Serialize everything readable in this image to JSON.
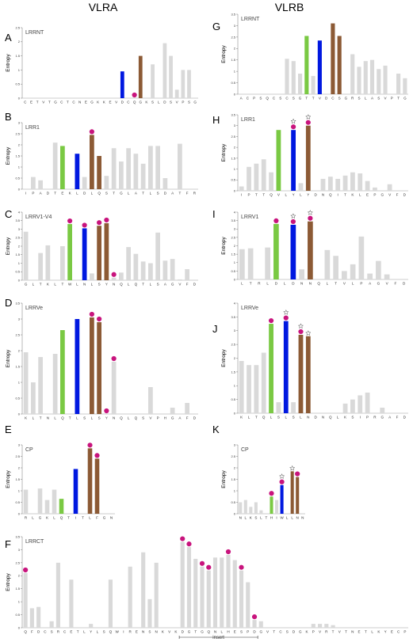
{
  "columns": [
    {
      "key": "left",
      "title": "VLRA"
    },
    {
      "key": "right",
      "title": "VLRB"
    }
  ],
  "colors": {
    "gray": "#d9d9d9",
    "green": "#7ac943",
    "blue": "#0018e0",
    "brown": "#8c5a35",
    "dot": "#c8147d"
  },
  "chart_data": [
    {
      "id": "A",
      "column": "left",
      "type": "bar",
      "title": "LRRNT",
      "ylabel": "Entropy",
      "ylim": [
        0,
        2.5
      ],
      "yticks": [
        0,
        0.5,
        1,
        1.5,
        2,
        2.5
      ],
      "categories": [
        "C",
        "E",
        "T",
        "V",
        "T",
        "G",
        "C",
        "T",
        "C",
        "N",
        "E",
        "G",
        "K",
        "K",
        "E",
        "V",
        "D",
        "C",
        "Q",
        "G",
        "K",
        "S",
        "L",
        "D",
        "S",
        "V",
        "P",
        "S",
        "G"
      ],
      "values": [
        0,
        0,
        0,
        0,
        0,
        0,
        0,
        0,
        0,
        0,
        0,
        0,
        0,
        0,
        0,
        0,
        0.95,
        0,
        0,
        1.5,
        0,
        1.2,
        0,
        1.95,
        1.5,
        0.3,
        1.0,
        1.0,
        0
      ],
      "colors": [
        "gray",
        "gray",
        "gray",
        "gray",
        "gray",
        "gray",
        "gray",
        "gray",
        "gray",
        "gray",
        "gray",
        "gray",
        "gray",
        "gray",
        "gray",
        "gray",
        "blue",
        "gray",
        "gray",
        "brown",
        "gray",
        "gray",
        "gray",
        "gray",
        "gray",
        "gray",
        "gray",
        "gray",
        "gray"
      ],
      "dots": [
        18
      ],
      "stars": []
    },
    {
      "id": "B",
      "column": "left",
      "type": "bar",
      "title": "LRR1",
      "ylabel": "Entropy",
      "ylim": [
        0,
        3
      ],
      "yticks": [
        0,
        0.5,
        1,
        1.5,
        2,
        2.5,
        3
      ],
      "categories": [
        "I",
        "P",
        "A",
        "D",
        "T",
        "E",
        "K",
        "L",
        "D",
        "L",
        "Q",
        "S",
        "T",
        "G",
        "L",
        "A",
        "T",
        "L",
        "S",
        "D",
        "A",
        "T",
        "F",
        "R"
      ],
      "values": [
        0,
        0.55,
        0.4,
        0,
        2.1,
        1.95,
        0,
        1.6,
        0.55,
        2.45,
        1.5,
        0.6,
        1.85,
        1.25,
        1.85,
        1.6,
        1.15,
        1.95,
        1.95,
        0.5,
        0,
        2.05,
        0,
        0
      ],
      "colors": [
        "gray",
        "gray",
        "gray",
        "gray",
        "gray",
        "green",
        "gray",
        "blue",
        "gray",
        "brown",
        "brown",
        "gray",
        "gray",
        "gray",
        "gray",
        "gray",
        "gray",
        "gray",
        "gray",
        "gray",
        "gray",
        "gray",
        "gray",
        "gray"
      ],
      "dots": [
        9
      ],
      "stars": []
    },
    {
      "id": "C",
      "column": "left",
      "type": "bar",
      "title": "LRRV1-V4",
      "ylabel": "Entropy",
      "ylim": [
        0,
        4
      ],
      "yticks": [
        0,
        0.5,
        1,
        1.5,
        2,
        2.5,
        3,
        3.5,
        4
      ],
      "categories": [
        "G",
        "L",
        "T",
        "K",
        "L",
        "T",
        "W",
        "L",
        "N",
        "L",
        "S",
        "Y",
        "N",
        "Q",
        "L",
        "Q",
        "T",
        "L",
        "S",
        "A",
        "G",
        "V",
        "F",
        "D"
      ],
      "values": [
        2.85,
        0,
        1.6,
        2.05,
        0,
        2.0,
        3.3,
        0,
        3.05,
        0.4,
        3.2,
        3.35,
        0.15,
        0.45,
        1.95,
        1.55,
        1.1,
        1.0,
        2.8,
        1.15,
        1.25,
        0.05,
        0.65,
        0
      ],
      "colors": [
        "gray",
        "gray",
        "gray",
        "gray",
        "gray",
        "gray",
        "green",
        "gray",
        "blue",
        "gray",
        "brown",
        "brown",
        "gray",
        "gray",
        "gray",
        "gray",
        "gray",
        "gray",
        "gray",
        "gray",
        "gray",
        "gray",
        "gray",
        "gray"
      ],
      "dots": [
        6,
        8,
        10,
        11,
        12
      ],
      "stars": []
    },
    {
      "id": "D",
      "column": "left",
      "type": "bar",
      "title": "LRRVe",
      "ylabel": "Entropy",
      "ylim": [
        0,
        3.5
      ],
      "yticks": [
        0,
        0.5,
        1,
        1.5,
        2,
        2.5,
        3,
        3.5
      ],
      "categories": [
        "K",
        "L",
        "T",
        "N",
        "L",
        "Q",
        "T",
        "L",
        "S",
        "L",
        "S",
        "Y",
        "N",
        "Q",
        "L",
        "Q",
        "S",
        "V",
        "P",
        "H",
        "G",
        "A",
        "F",
        "D"
      ],
      "values": [
        1.95,
        1.0,
        1.8,
        0,
        1.9,
        2.65,
        0,
        3.0,
        0,
        3.05,
        2.9,
        0,
        1.65,
        0,
        0,
        0,
        0,
        0.85,
        0,
        0,
        0.2,
        0,
        0.35,
        0
      ],
      "colors": [
        "gray",
        "gray",
        "gray",
        "gray",
        "gray",
        "green",
        "gray",
        "blue",
        "gray",
        "brown",
        "brown",
        "gray",
        "gray",
        "gray",
        "gray",
        "gray",
        "gray",
        "gray",
        "gray",
        "gray",
        "gray",
        "gray",
        "gray",
        "gray"
      ],
      "dots": [
        9,
        10,
        11,
        12
      ],
      "stars": []
    },
    {
      "id": "E",
      "column": "left",
      "type": "bar",
      "title": "CP",
      "ylabel": "Entropy",
      "ylim": [
        0,
        3
      ],
      "yticks": [
        0,
        0.5,
        1,
        1.5,
        2,
        2.5,
        3
      ],
      "categories": [
        "R",
        "L",
        "G",
        "K",
        "L",
        "Q",
        "T",
        "I",
        "T",
        "L",
        "F",
        "G",
        "N"
      ],
      "values": [
        1.05,
        0,
        1.1,
        0.6,
        1.05,
        0.65,
        0,
        1.95,
        0,
        2.85,
        2.4,
        0,
        0
      ],
      "colors": [
        "gray",
        "gray",
        "gray",
        "gray",
        "gray",
        "green",
        "gray",
        "blue",
        "gray",
        "brown",
        "brown",
        "gray",
        "gray"
      ],
      "dots": [
        9,
        10
      ],
      "stars": []
    },
    {
      "id": "F",
      "column": "left",
      "type": "bar",
      "title": "LRRCT",
      "ylabel": "Entropy",
      "ylim": [
        0,
        3.5
      ],
      "yticks": [
        0,
        0.5,
        1,
        1.5,
        2,
        2.5,
        3,
        3.5
      ],
      "categories": [
        "Q",
        "F",
        "D",
        "C",
        "S",
        "R",
        "C",
        "E",
        "T",
        "L",
        "Y",
        "L",
        "S",
        "Q",
        "W",
        "I",
        "R",
        "E",
        "N",
        "S",
        "N",
        "K",
        "V",
        "K",
        "D",
        "G",
        "T",
        "G",
        "Q",
        "N",
        "L",
        "H",
        "E",
        "S",
        "P",
        "D",
        "G",
        "V",
        "T",
        "C",
        "S",
        "D",
        "G",
        "K",
        "P",
        "V",
        "R",
        "T",
        "V",
        "T",
        "N",
        "E",
        "T",
        "L",
        "K",
        "Y",
        "E",
        "C",
        "P"
      ],
      "values": [
        2.1,
        0.75,
        0.8,
        0,
        0.25,
        2.5,
        0,
        1.85,
        0,
        0,
        0.15,
        0,
        0,
        1.85,
        0,
        0,
        2.35,
        0,
        2.9,
        1.1,
        2.5,
        0,
        0,
        0,
        3.3,
        3.1,
        2.65,
        2.35,
        2.2,
        2.7,
        2.7,
        2.8,
        2.6,
        2.2,
        1.75,
        0.3,
        0.25,
        0,
        0,
        0,
        0,
        0,
        0,
        0,
        0.15,
        0.15,
        0.15,
        0.1,
        0,
        0,
        0,
        0,
        0,
        0,
        0,
        0,
        0,
        0,
        0
      ],
      "colors": [
        "gray",
        "gray",
        "gray",
        "gray",
        "gray",
        "gray",
        "gray",
        "gray",
        "gray",
        "gray",
        "gray",
        "gray",
        "gray",
        "gray",
        "gray",
        "gray",
        "gray",
        "gray",
        "gray",
        "gray",
        "gray",
        "gray",
        "gray",
        "gray",
        "gray",
        "gray",
        "gray",
        "gray",
        "gray",
        "gray",
        "gray",
        "gray",
        "gray",
        "gray",
        "gray",
        "gray",
        "gray",
        "gray",
        "gray",
        "gray",
        "gray",
        "gray",
        "gray",
        "gray",
        "gray",
        "gray",
        "gray",
        "gray",
        "gray",
        "gray",
        "gray",
        "gray",
        "gray",
        "gray",
        "gray",
        "gray",
        "gray",
        "gray",
        "gray"
      ],
      "dots": [
        0,
        24,
        25,
        27,
        28,
        31,
        33,
        35
      ],
      "stars": [],
      "annotation": {
        "label": "insert",
        "from": 24,
        "to": 36
      }
    },
    {
      "id": "G",
      "column": "right",
      "type": "bar",
      "title": "LRRNT",
      "ylabel": "Entropy",
      "ylim": [
        0,
        3.5
      ],
      "yticks": [
        0,
        0.5,
        1,
        1.5,
        2,
        2.5,
        3,
        3.5
      ],
      "categories": [
        "A",
        "C",
        "P",
        "S",
        "Q",
        "C",
        "S",
        "C",
        "S",
        "G",
        "T",
        "T",
        "V",
        "D",
        "C",
        "S",
        "G",
        "R",
        "S",
        "L",
        "A",
        "S",
        "V",
        "P",
        "T",
        "G"
      ],
      "values": [
        0,
        0,
        0,
        0,
        0,
        0,
        0,
        1.55,
        1.45,
        0.9,
        2.55,
        0.8,
        2.35,
        0,
        3.1,
        2.55,
        0,
        1.75,
        1.2,
        1.45,
        1.5,
        1.1,
        1.25,
        0,
        0.9,
        0.7
      ],
      "colors": [
        "gray",
        "gray",
        "gray",
        "gray",
        "gray",
        "gray",
        "gray",
        "gray",
        "gray",
        "gray",
        "green",
        "gray",
        "blue",
        "gray",
        "brown",
        "brown",
        "gray",
        "gray",
        "gray",
        "gray",
        "gray",
        "gray",
        "gray",
        "gray",
        "gray",
        "gray"
      ],
      "dots": [],
      "stars": []
    },
    {
      "id": "H",
      "column": "right",
      "type": "bar",
      "title": "LRR1",
      "ylabel": "Entropy",
      "ylim": [
        0,
        3.5
      ],
      "yticks": [
        0,
        0.5,
        1,
        1.5,
        2,
        2.5,
        3,
        3.5
      ],
      "categories": [
        "I",
        "P",
        "T",
        "T",
        "Q",
        "V",
        "L",
        "Y",
        "L",
        "Y",
        "D",
        "N",
        "Q",
        "I",
        "T",
        "K",
        "L",
        "E",
        "P",
        "G",
        "V",
        "F",
        "D"
      ],
      "values": [
        0.2,
        1.1,
        1.25,
        1.45,
        0.85,
        2.8,
        0,
        2.8,
        0.35,
        3.0,
        0,
        0.55,
        0.65,
        0.55,
        0.7,
        0.85,
        0.8,
        0.45,
        0.15,
        0,
        0.3,
        0,
        0
      ],
      "colors": [
        "gray",
        "gray",
        "gray",
        "gray",
        "gray",
        "green",
        "gray",
        "blue",
        "gray",
        "brown",
        "gray",
        "gray",
        "gray",
        "gray",
        "gray",
        "gray",
        "gray",
        "gray",
        "gray",
        "gray",
        "gray",
        "gray",
        "gray"
      ],
      "dots": [
        7,
        9
      ],
      "stars": [
        7,
        9
      ]
    },
    {
      "id": "I",
      "column": "right",
      "type": "bar",
      "title": "LRRV1",
      "ylabel": "Entropy",
      "ylim": [
        0,
        4
      ],
      "yticks": [
        0,
        0.5,
        1,
        1.5,
        2,
        2.5,
        3,
        3.5,
        4
      ],
      "categories": [
        "L",
        "T",
        "R",
        "L",
        "D",
        "L",
        "D",
        "N",
        "N",
        "Q",
        "L",
        "T",
        "V",
        "L",
        "P",
        "A",
        "G",
        "V",
        "F",
        "D"
      ],
      "values": [
        1.8,
        1.85,
        0,
        1.9,
        3.3,
        0,
        3.25,
        0.6,
        3.45,
        0,
        1.75,
        1.4,
        0.5,
        0.9,
        2.55,
        0.35,
        1.1,
        0.3,
        0,
        0
      ],
      "colors": [
        "gray",
        "gray",
        "gray",
        "gray",
        "green",
        "gray",
        "blue",
        "gray",
        "brown",
        "gray",
        "gray",
        "gray",
        "gray",
        "gray",
        "gray",
        "gray",
        "gray",
        "gray",
        "gray",
        "gray"
      ],
      "dots": [
        4,
        6,
        8
      ],
      "stars": [
        6,
        8
      ]
    },
    {
      "id": "J",
      "column": "right",
      "type": "bar",
      "title": "LRRVe",
      "ylabel": "Entropy",
      "ylim": [
        0,
        4
      ],
      "yticks": [
        0,
        0.5,
        1,
        1.5,
        2,
        2.5,
        3,
        3.5,
        4
      ],
      "categories": [
        "K",
        "L",
        "T",
        "Q",
        "L",
        "S",
        "L",
        "S",
        "L",
        "N",
        "D",
        "N",
        "Q",
        "L",
        "K",
        "S",
        "I",
        "P",
        "R",
        "G",
        "A",
        "F",
        "D"
      ],
      "values": [
        1.9,
        1.75,
        1.75,
        2.2,
        3.25,
        0.4,
        3.35,
        0.4,
        2.85,
        2.8,
        0,
        0,
        0,
        0,
        0.35,
        0.5,
        0.65,
        0.75,
        0,
        0.2,
        0,
        0,
        0
      ],
      "colors": [
        "gray",
        "gray",
        "gray",
        "gray",
        "green",
        "gray",
        "blue",
        "gray",
        "brown",
        "brown",
        "gray",
        "gray",
        "gray",
        "gray",
        "gray",
        "gray",
        "gray",
        "gray",
        "gray",
        "gray",
        "gray",
        "gray",
        "gray"
      ],
      "dots": [
        4,
        6,
        8
      ],
      "stars": [
        6,
        8,
        9
      ]
    },
    {
      "id": "K",
      "column": "right",
      "type": "bar",
      "title": "CP",
      "ylabel": "Entropy",
      "ylim": [
        0,
        3
      ],
      "yticks": [
        0,
        0.5,
        1,
        1.5,
        2,
        2.5,
        3
      ],
      "categories": [
        "N",
        "L",
        "K",
        "S",
        "L",
        "T",
        "H",
        "I",
        "W",
        "L",
        "L",
        "N",
        "N"
      ],
      "values": [
        0.5,
        0.6,
        0.3,
        0.5,
        0.15,
        0,
        0.75,
        0.6,
        1.25,
        0,
        1.85,
        1.6,
        0
      ],
      "colors": [
        "gray",
        "gray",
        "gray",
        "gray",
        "gray",
        "gray",
        "green",
        "gray",
        "blue",
        "gray",
        "brown",
        "brown",
        "gray"
      ],
      "dots": [
        6,
        8,
        11
      ],
      "stars": [
        8,
        10
      ]
    }
  ]
}
